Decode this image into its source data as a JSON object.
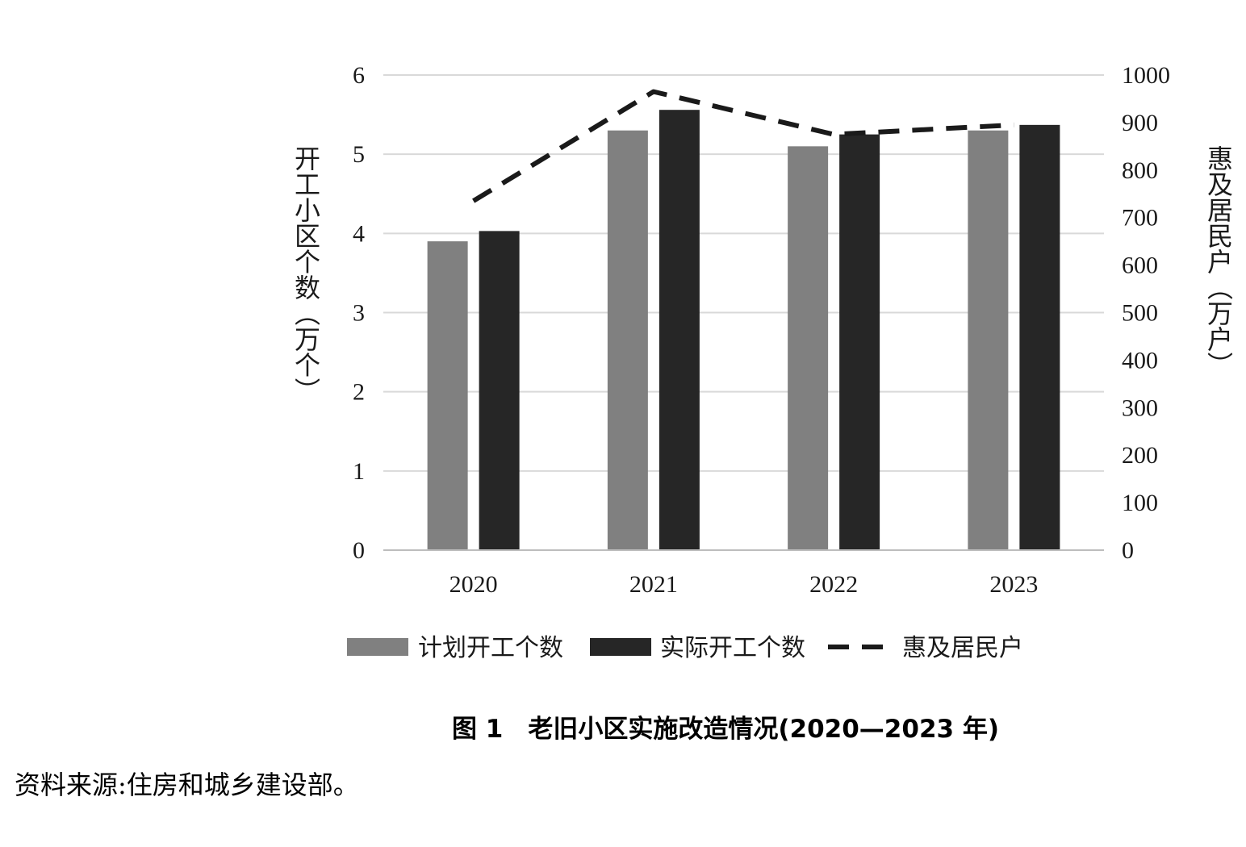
{
  "chart_data": {
    "type": "bar",
    "categories": [
      "2020",
      "2021",
      "2022",
      "2023"
    ],
    "series": [
      {
        "name": "计划开工个数",
        "kind": "bar",
        "axis": "left",
        "color": "#808080",
        "values": [
          3.9,
          5.3,
          5.1,
          5.3
        ]
      },
      {
        "name": "实际开工个数",
        "kind": "bar",
        "axis": "left",
        "color": "#262626",
        "values": [
          4.03,
          5.56,
          5.25,
          5.37
        ]
      },
      {
        "name": "惠及居民户",
        "kind": "line",
        "style": "dashed",
        "axis": "right",
        "color": "#1a1a1a",
        "values": [
          735,
          965,
          875,
          895
        ]
      }
    ],
    "y_left": {
      "label": "开工小区个数（万个）",
      "lim": [
        0,
        6
      ],
      "ticks": [
        "0",
        "1",
        "2",
        "3",
        "4",
        "5",
        "6"
      ]
    },
    "y_right": {
      "label": "惠及居民户（万户）",
      "lim": [
        0,
        1000
      ],
      "ticks": [
        "0",
        "100",
        "200",
        "300",
        "400",
        "500",
        "600",
        "700",
        "800",
        "900",
        "1000"
      ]
    },
    "grid": true,
    "legend_position": "bottom"
  },
  "caption": "图 1　老旧小区实施改造情况(2020—2023 年)",
  "source_note": "资料来源:住房和城乡建设部。"
}
